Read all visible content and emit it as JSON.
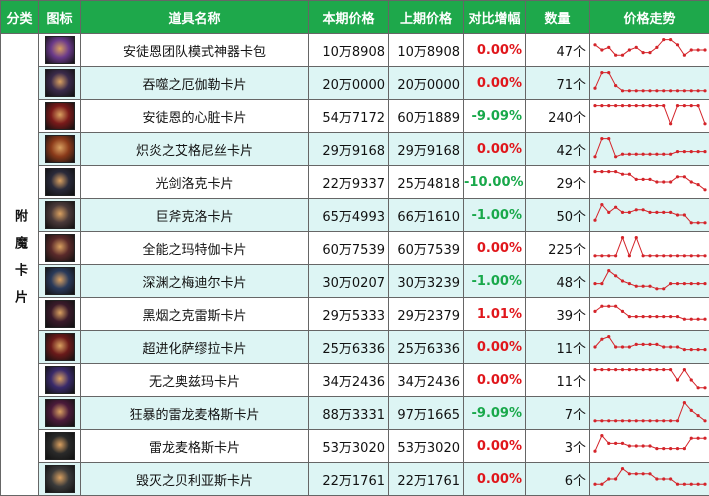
{
  "header": [
    "分类",
    "图标",
    "道具名称",
    "本期价格",
    "上期价格",
    "对比增幅",
    "数量",
    "价格走势"
  ],
  "category": "附魔卡片",
  "rows": [
    {
      "name": "安徒恩团队模式神器卡包",
      "current": "10万8908",
      "previous": "10万8908",
      "change": "0.00%",
      "quantity": "47个",
      "trend": [
        7,
        5,
        6,
        3,
        3,
        5,
        6,
        4,
        4,
        6,
        9,
        9,
        7,
        3,
        5,
        5,
        5
      ]
    },
    {
      "name": "吞噬之厄伽勒卡片",
      "current": "20万0000",
      "previous": "20万0000",
      "change": "0.00%",
      "quantity": "71个",
      "trend": [
        3,
        9,
        9,
        4,
        2,
        2,
        2,
        2,
        2,
        2,
        2,
        2,
        2,
        2,
        2,
        2,
        2
      ]
    },
    {
      "name": "安徒恩的心脏卡片",
      "current": "54万7172",
      "previous": "60万1889",
      "change": "-9.09%",
      "quantity": "240个",
      "trend": [
        9,
        9,
        9,
        9,
        9,
        9,
        9,
        9,
        9,
        9,
        9,
        2,
        9,
        9,
        9,
        9,
        2
      ]
    },
    {
      "name": "炽炎之艾格尼丝卡片",
      "current": "29万9168",
      "previous": "29万9168",
      "change": "0.00%",
      "quantity": "42个",
      "trend": [
        2,
        9,
        9,
        2,
        3,
        3,
        3,
        3,
        3,
        3,
        3,
        3,
        4,
        4,
        4,
        4,
        4
      ]
    },
    {
      "name": "光剑洛克卡片",
      "current": "22万9337",
      "previous": "25万4818",
      "change": "-10.00%",
      "quantity": "29个",
      "trend": [
        9,
        9,
        9,
        9,
        8,
        8,
        6,
        6,
        6,
        5,
        5,
        5,
        7,
        7,
        5,
        4,
        2
      ]
    },
    {
      "name": "巨斧克洛卡片",
      "current": "65万4993",
      "previous": "66万1610",
      "change": "-1.00%",
      "quantity": "50个",
      "trend": [
        3,
        9,
        6,
        8,
        6,
        6,
        7,
        7,
        6,
        6,
        6,
        6,
        5,
        5,
        2,
        2,
        2
      ]
    },
    {
      "name": "全能之玛特伽卡片",
      "current": "60万7539",
      "previous": "60万7539",
      "change": "0.00%",
      "quantity": "225个",
      "trend": [
        2,
        2,
        2,
        2,
        9,
        2,
        9,
        2,
        2,
        2,
        2,
        2,
        2,
        2,
        2,
        2,
        2
      ]
    },
    {
      "name": "深渊之梅迪尔卡片",
      "current": "30万0207",
      "previous": "30万3239",
      "change": "-1.00%",
      "quantity": "48个",
      "trend": [
        4,
        4,
        9,
        7,
        5,
        4,
        3,
        3,
        3,
        2,
        2,
        4,
        4,
        4,
        4,
        4,
        4
      ]
    },
    {
      "name": "黑烟之克雷斯卡片",
      "current": "29万5333",
      "previous": "29万2379",
      "change": "1.01%",
      "quantity": "39个",
      "trend": [
        6,
        8,
        8,
        8,
        6,
        4,
        4,
        4,
        4,
        4,
        4,
        4,
        4,
        3,
        3,
        3,
        3
      ]
    },
    {
      "name": "超进化萨缪拉卡片",
      "current": "25万6336",
      "previous": "25万6336",
      "change": "0.00%",
      "quantity": "11个",
      "trend": [
        5,
        8,
        9,
        5,
        5,
        5,
        6,
        6,
        6,
        6,
        5,
        5,
        5,
        4,
        4,
        4,
        4
      ]
    },
    {
      "name": "无之奥兹玛卡片",
      "current": "34万2436",
      "previous": "34万2436",
      "change": "0.00%",
      "quantity": "11个",
      "trend": [
        9,
        9,
        9,
        9,
        9,
        9,
        9,
        9,
        9,
        9,
        9,
        9,
        5,
        9,
        5,
        2,
        2
      ]
    },
    {
      "name": "狂暴的雷龙麦格斯卡片",
      "current": "88万3331",
      "previous": "97万1665",
      "change": "-9.09%",
      "quantity": "7个",
      "trend": [
        2,
        2,
        2,
        2,
        2,
        2,
        2,
        2,
        2,
        2,
        2,
        2,
        2,
        9,
        6,
        4,
        2
      ]
    },
    {
      "name": "雷龙麦格斯卡片",
      "current": "53万3020",
      "previous": "53万3020",
      "change": "0.00%",
      "quantity": "3个",
      "trend": [
        3,
        9,
        6,
        6,
        6,
        5,
        5,
        5,
        5,
        4,
        4,
        4,
        4,
        4,
        8,
        8,
        8
      ]
    },
    {
      "name": "毁灭之贝利亚斯卡片",
      "current": "22万1761",
      "previous": "22万1761",
      "change": "0.00%",
      "quantity": "6个",
      "trend": [
        3,
        3,
        5,
        5,
        9,
        7,
        7,
        7,
        7,
        5,
        5,
        5,
        3,
        3,
        3,
        3,
        3
      ]
    }
  ]
}
